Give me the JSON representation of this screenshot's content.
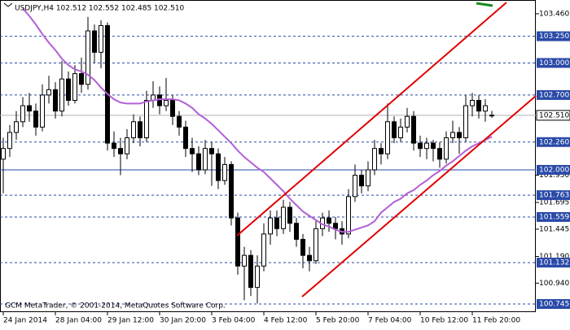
{
  "chart_data": {
    "type": "candlestick",
    "header": "USDJPY,H4  102.512 102.552 102.485 102.510",
    "footer": "GCM MetaTrader, © 2001-2014, MetaQuotes Software Corp.",
    "categories": [
      "24 Jan 2014",
      null,
      null,
      null,
      null,
      null,
      null,
      null,
      "28 Jan 04:00",
      null,
      null,
      null,
      null,
      null,
      null,
      null,
      "29 Jan 12:00",
      null,
      null,
      null,
      null,
      null,
      null,
      null,
      "30 Jan 20:00",
      null,
      null,
      null,
      null,
      null,
      null,
      null,
      "3 Feb 04:00",
      null,
      null,
      null,
      null,
      null,
      null,
      null,
      "4 Feb 12:00",
      null,
      null,
      null,
      null,
      null,
      null,
      null,
      "5 Feb 20:00",
      null,
      null,
      null,
      null,
      null,
      null,
      null,
      "7 Feb 04:00",
      null,
      null,
      null,
      null,
      null,
      null,
      null,
      "10 Feb 12:00",
      null,
      null,
      null,
      null,
      null,
      null,
      null,
      "11 Feb 20:00",
      null,
      null,
      null
    ],
    "open": [
      102.1,
      102.2,
      102.35,
      102.45,
      102.6,
      102.55,
      102.4,
      102.7,
      102.75,
      102.55,
      102.85,
      102.65,
      102.9,
      102.8,
      103.3,
      103.1,
      103.35,
      102.25,
      102.2,
      102.15,
      102.3,
      102.45,
      102.3,
      102.65,
      102.7,
      102.6,
      102.65,
      102.5,
      102.4,
      102.2,
      102.15,
      102.0,
      102.2,
      102.15,
      101.9,
      102.05,
      101.55,
      101.1,
      101.2,
      100.9,
      101.1,
      101.4,
      101.55,
      101.45,
      101.65,
      101.5,
      101.35,
      101.2,
      101.15,
      101.45,
      101.55,
      101.5,
      101.45,
      101.4,
      101.75,
      101.95,
      101.85,
      102.0,
      102.2,
      102.15,
      102.45,
      102.3,
      102.4,
      102.5,
      102.25,
      102.2,
      102.25,
      102.2,
      102.1,
      102.3,
      102.35,
      102.3,
      102.6,
      102.65,
      102.55,
      102.512
    ],
    "high": [
      102.3,
      102.42,
      102.55,
      102.68,
      102.72,
      102.62,
      102.8,
      102.88,
      102.82,
      103.02,
      102.92,
      102.98,
      103.05,
      103.43,
      103.36,
      103.4,
      103.38,
      102.36,
      102.3,
      102.38,
      102.52,
      102.5,
      102.74,
      102.83,
      102.78,
      102.86,
      102.7,
      102.55,
      102.46,
      102.3,
      102.22,
      102.28,
      102.26,
      102.2,
      102.12,
      102.08,
      101.6,
      101.28,
      101.25,
      101.2,
      101.5,
      101.62,
      101.62,
      101.72,
      101.7,
      101.55,
      101.4,
      101.28,
      101.52,
      101.6,
      101.62,
      101.56,
      101.52,
      101.82,
      102.05,
      102.0,
      102.08,
      102.28,
      102.25,
      102.62,
      102.5,
      102.48,
      102.58,
      102.55,
      102.32,
      102.3,
      102.28,
      102.26,
      102.36,
      102.46,
      102.4,
      102.7,
      102.72,
      102.7,
      102.66,
      102.552
    ],
    "low": [
      101.78,
      102.12,
      102.28,
      102.4,
      102.45,
      102.32,
      102.36,
      102.62,
      102.48,
      102.5,
      102.6,
      102.62,
      102.72,
      102.75,
      103.0,
      102.95,
      102.18,
      102.12,
      101.95,
      102.1,
      102.25,
      102.22,
      102.26,
      102.58,
      102.52,
      102.55,
      102.42,
      102.32,
      102.12,
      101.98,
      101.95,
      101.96,
      101.85,
      101.82,
      101.86,
      101.48,
      101.02,
      100.78,
      100.82,
      100.75,
      101.05,
      101.3,
      101.38,
      101.4,
      101.42,
      101.28,
      101.08,
      101.05,
      101.12,
      101.38,
      101.42,
      101.35,
      101.3,
      101.36,
      101.7,
      101.78,
      101.8,
      101.95,
      102.05,
      102.1,
      102.25,
      102.26,
      102.35,
      102.18,
      102.12,
      102.1,
      102.08,
      102.02,
      102.06,
      102.25,
      102.15,
      102.26,
      102.5,
      102.48,
      102.45,
      102.485
    ],
    "close": [
      102.2,
      102.35,
      102.45,
      102.6,
      102.55,
      102.4,
      102.7,
      102.75,
      102.55,
      102.85,
      102.65,
      102.9,
      102.8,
      103.3,
      103.1,
      103.35,
      102.25,
      102.2,
      102.15,
      102.3,
      102.45,
      102.3,
      102.65,
      102.7,
      102.6,
      102.65,
      102.5,
      102.4,
      102.2,
      102.15,
      102.0,
      102.2,
      102.15,
      101.9,
      102.05,
      101.55,
      101.1,
      101.2,
      100.9,
      101.1,
      101.4,
      101.55,
      101.45,
      101.65,
      101.5,
      101.35,
      101.2,
      101.15,
      101.45,
      101.55,
      101.5,
      101.45,
      101.4,
      101.75,
      101.95,
      101.85,
      102.0,
      102.2,
      102.15,
      102.45,
      102.3,
      102.4,
      102.5,
      102.25,
      102.2,
      102.25,
      102.2,
      102.1,
      102.3,
      102.35,
      102.3,
      102.6,
      102.65,
      102.55,
      102.6,
      102.51
    ],
    "ma_color": "#b25fd6",
    "ma_values": [
      null,
      null,
      null,
      103.51,
      103.44,
      103.36,
      103.27,
      103.19,
      103.12,
      103.04,
      102.98,
      102.94,
      102.92,
      102.89,
      102.84,
      102.77,
      102.71,
      102.66,
      102.63,
      102.62,
      102.62,
      102.62,
      102.64,
      102.65,
      102.66,
      102.66,
      102.66,
      102.65,
      102.62,
      102.58,
      102.52,
      102.48,
      102.43,
      102.37,
      102.31,
      102.25,
      102.18,
      102.12,
      102.07,
      102.02,
      101.98,
      101.92,
      101.86,
      101.8,
      101.73,
      101.67,
      101.61,
      101.57,
      101.53,
      101.49,
      101.47,
      101.44,
      101.42,
      101.42,
      101.44,
      101.46,
      101.48,
      101.52,
      101.6,
      101.65,
      101.7,
      101.73,
      101.78,
      101.81,
      101.86,
      101.9,
      101.95,
      101.99,
      102.04,
      102.08,
      102.13,
      102.18,
      102.22,
      102.25,
      102.28,
      102.31
    ],
    "ylim": [
      100.669,
      103.589
    ],
    "yticks": [
      {
        "value": 103.46,
        "label": "103.460"
      },
      {
        "value": 101.95,
        "label": "101.950"
      },
      {
        "value": 101.695,
        "label": "101.695"
      },
      {
        "value": 101.445,
        "label": "101.445"
      },
      {
        "value": 101.19,
        "label": "101.190"
      },
      {
        "value": 100.94,
        "label": "100.940"
      }
    ],
    "levels": [
      {
        "value": 103.25,
        "label": "103.250",
        "style": "dashed"
      },
      {
        "value": 103,
        "label": "103.000",
        "style": "dashed"
      },
      {
        "value": 102.7,
        "label": "102.700",
        "style": "dashed"
      },
      {
        "value": 102.26,
        "label": "102.260",
        "style": "dashed"
      },
      {
        "value": 102,
        "label": "102.000",
        "style": "solid"
      },
      {
        "value": 101.763,
        "label": "101.763",
        "style": "dashed"
      },
      {
        "value": 101.559,
        "label": "101.559",
        "style": "dashed"
      },
      {
        "value": 101.132,
        "label": "101.132",
        "style": "dashed"
      },
      {
        "value": 100.745,
        "label": "100.745",
        "style": "dashed"
      }
    ],
    "level_color": "#2a4aa8",
    "current_price": {
      "value": 102.51,
      "label": "102.510"
    },
    "up_color": "#ffffff",
    "down_color": "#000000"
  }
}
